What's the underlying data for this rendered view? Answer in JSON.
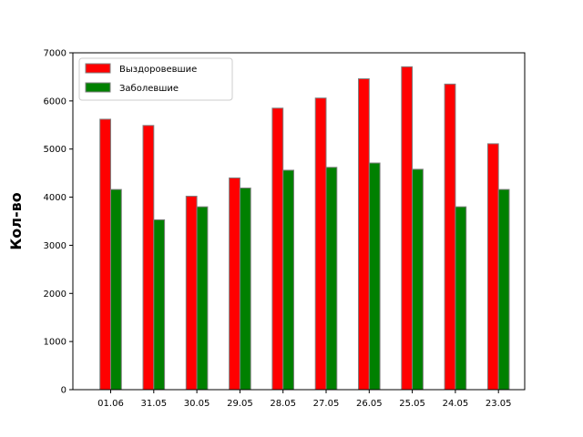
{
  "chart_data": {
    "type": "bar",
    "title": "",
    "xlabel": "",
    "ylabel": "Кол-во",
    "categories": [
      "01.06",
      "31.05",
      "30.05",
      "29.05",
      "28.05",
      "27.05",
      "26.05",
      "25.05",
      "24.05",
      "23.05"
    ],
    "series": [
      {
        "name": "Выздоровевшие",
        "color": "#ff0000",
        "values": [
          5620,
          5490,
          4020,
          4400,
          5850,
          6060,
          6460,
          6710,
          6350,
          5110
        ]
      },
      {
        "name": "Заболевшие",
        "color": "#008000",
        "values": [
          4160,
          3530,
          3800,
          4190,
          4560,
          4620,
          4710,
          4580,
          3800,
          4160
        ]
      }
    ],
    "yticks": [
      "0",
      "1000",
      "2000",
      "3000",
      "4000",
      "5000",
      "6000",
      "7000"
    ],
    "ylim": [
      0,
      7000
    ],
    "legend": "top-left",
    "grid": false,
    "bar_edge_color": "#808080"
  }
}
